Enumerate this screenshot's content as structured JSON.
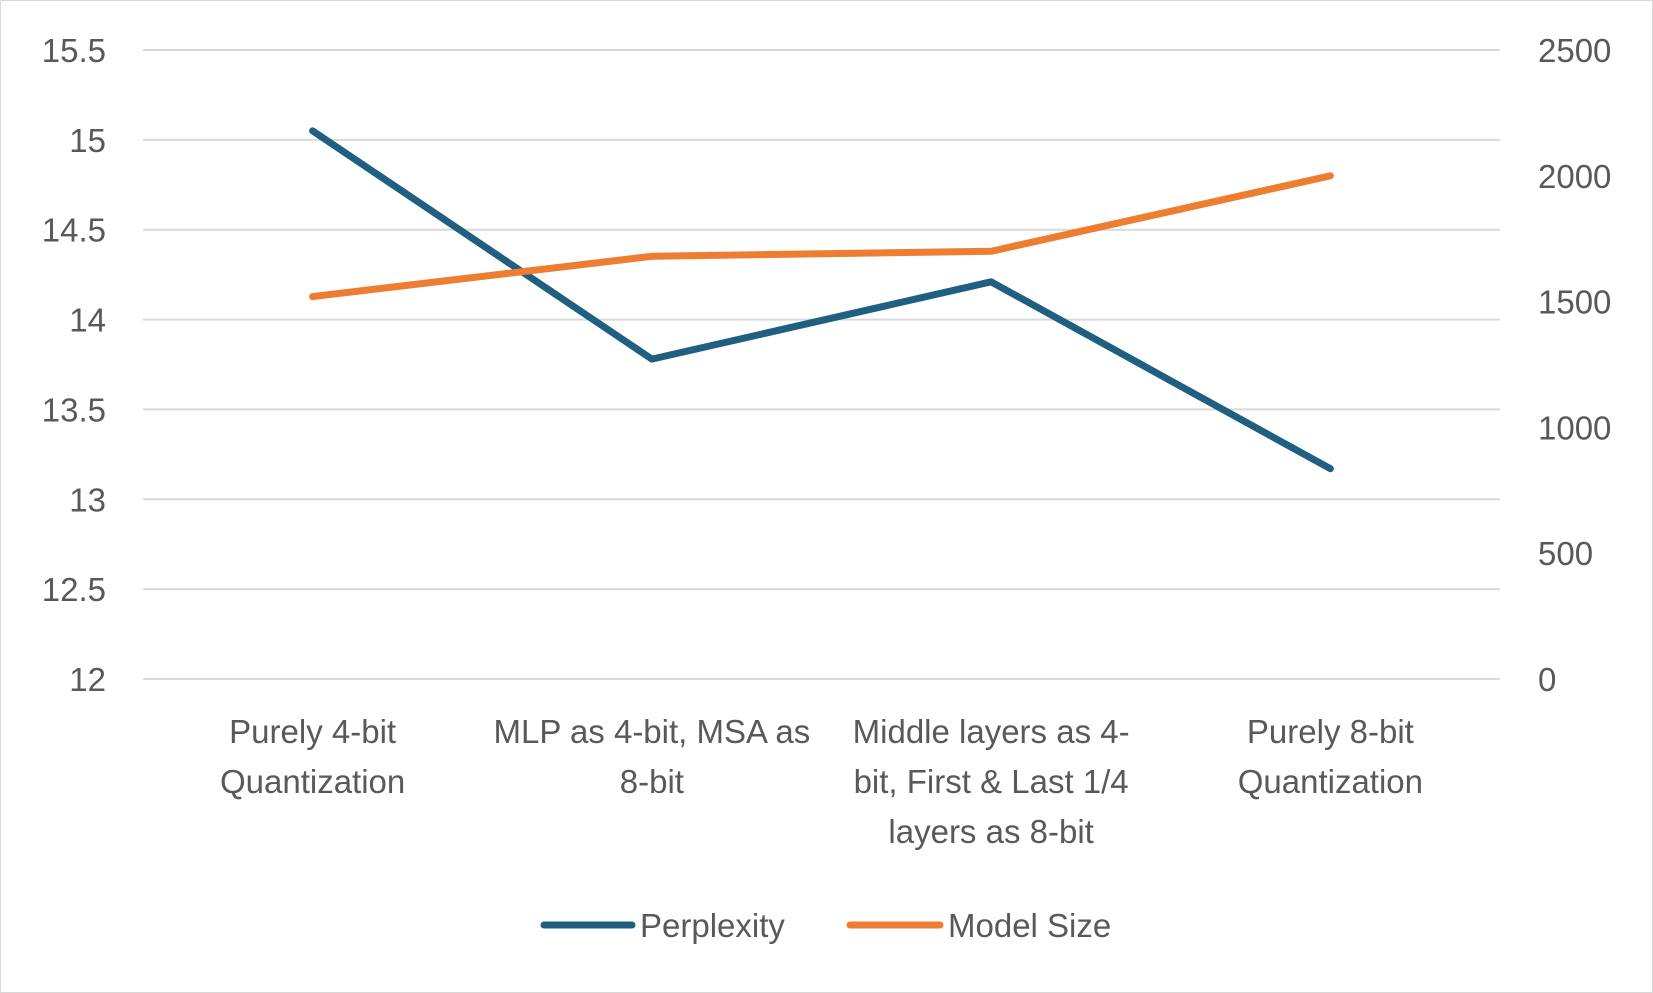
{
  "chart_data": {
    "type": "line",
    "categories": [
      [
        "Purely 4-bit",
        "Quantization"
      ],
      [
        "MLP as 4-bit, MSA as",
        "8-bit"
      ],
      [
        "Middle layers as 4-",
        "bit, First & Last 1/4",
        "layers as 8-bit"
      ],
      [
        "Purely 8-bit",
        "Quantization"
      ]
    ],
    "y_left": {
      "ylim": [
        12,
        15.5
      ],
      "ticks": [
        "12",
        "12.5",
        "13",
        "13.5",
        "14",
        "14.5",
        "15",
        "15.5"
      ]
    },
    "y_right": {
      "ylim": [
        0,
        2500
      ],
      "ticks": [
        "0",
        "500",
        "1000",
        "1500",
        "2000",
        "2500"
      ]
    },
    "grid": true,
    "legend_position": "bottom",
    "series": [
      {
        "name": "Perplexity",
        "axis": "left",
        "color": "#1f5f80",
        "values": [
          15.05,
          13.78,
          14.21,
          13.17
        ]
      },
      {
        "name": "Model Size",
        "axis": "right",
        "color": "#ed7d31",
        "values": [
          1520,
          1680,
          1700,
          2000
        ]
      }
    ]
  }
}
